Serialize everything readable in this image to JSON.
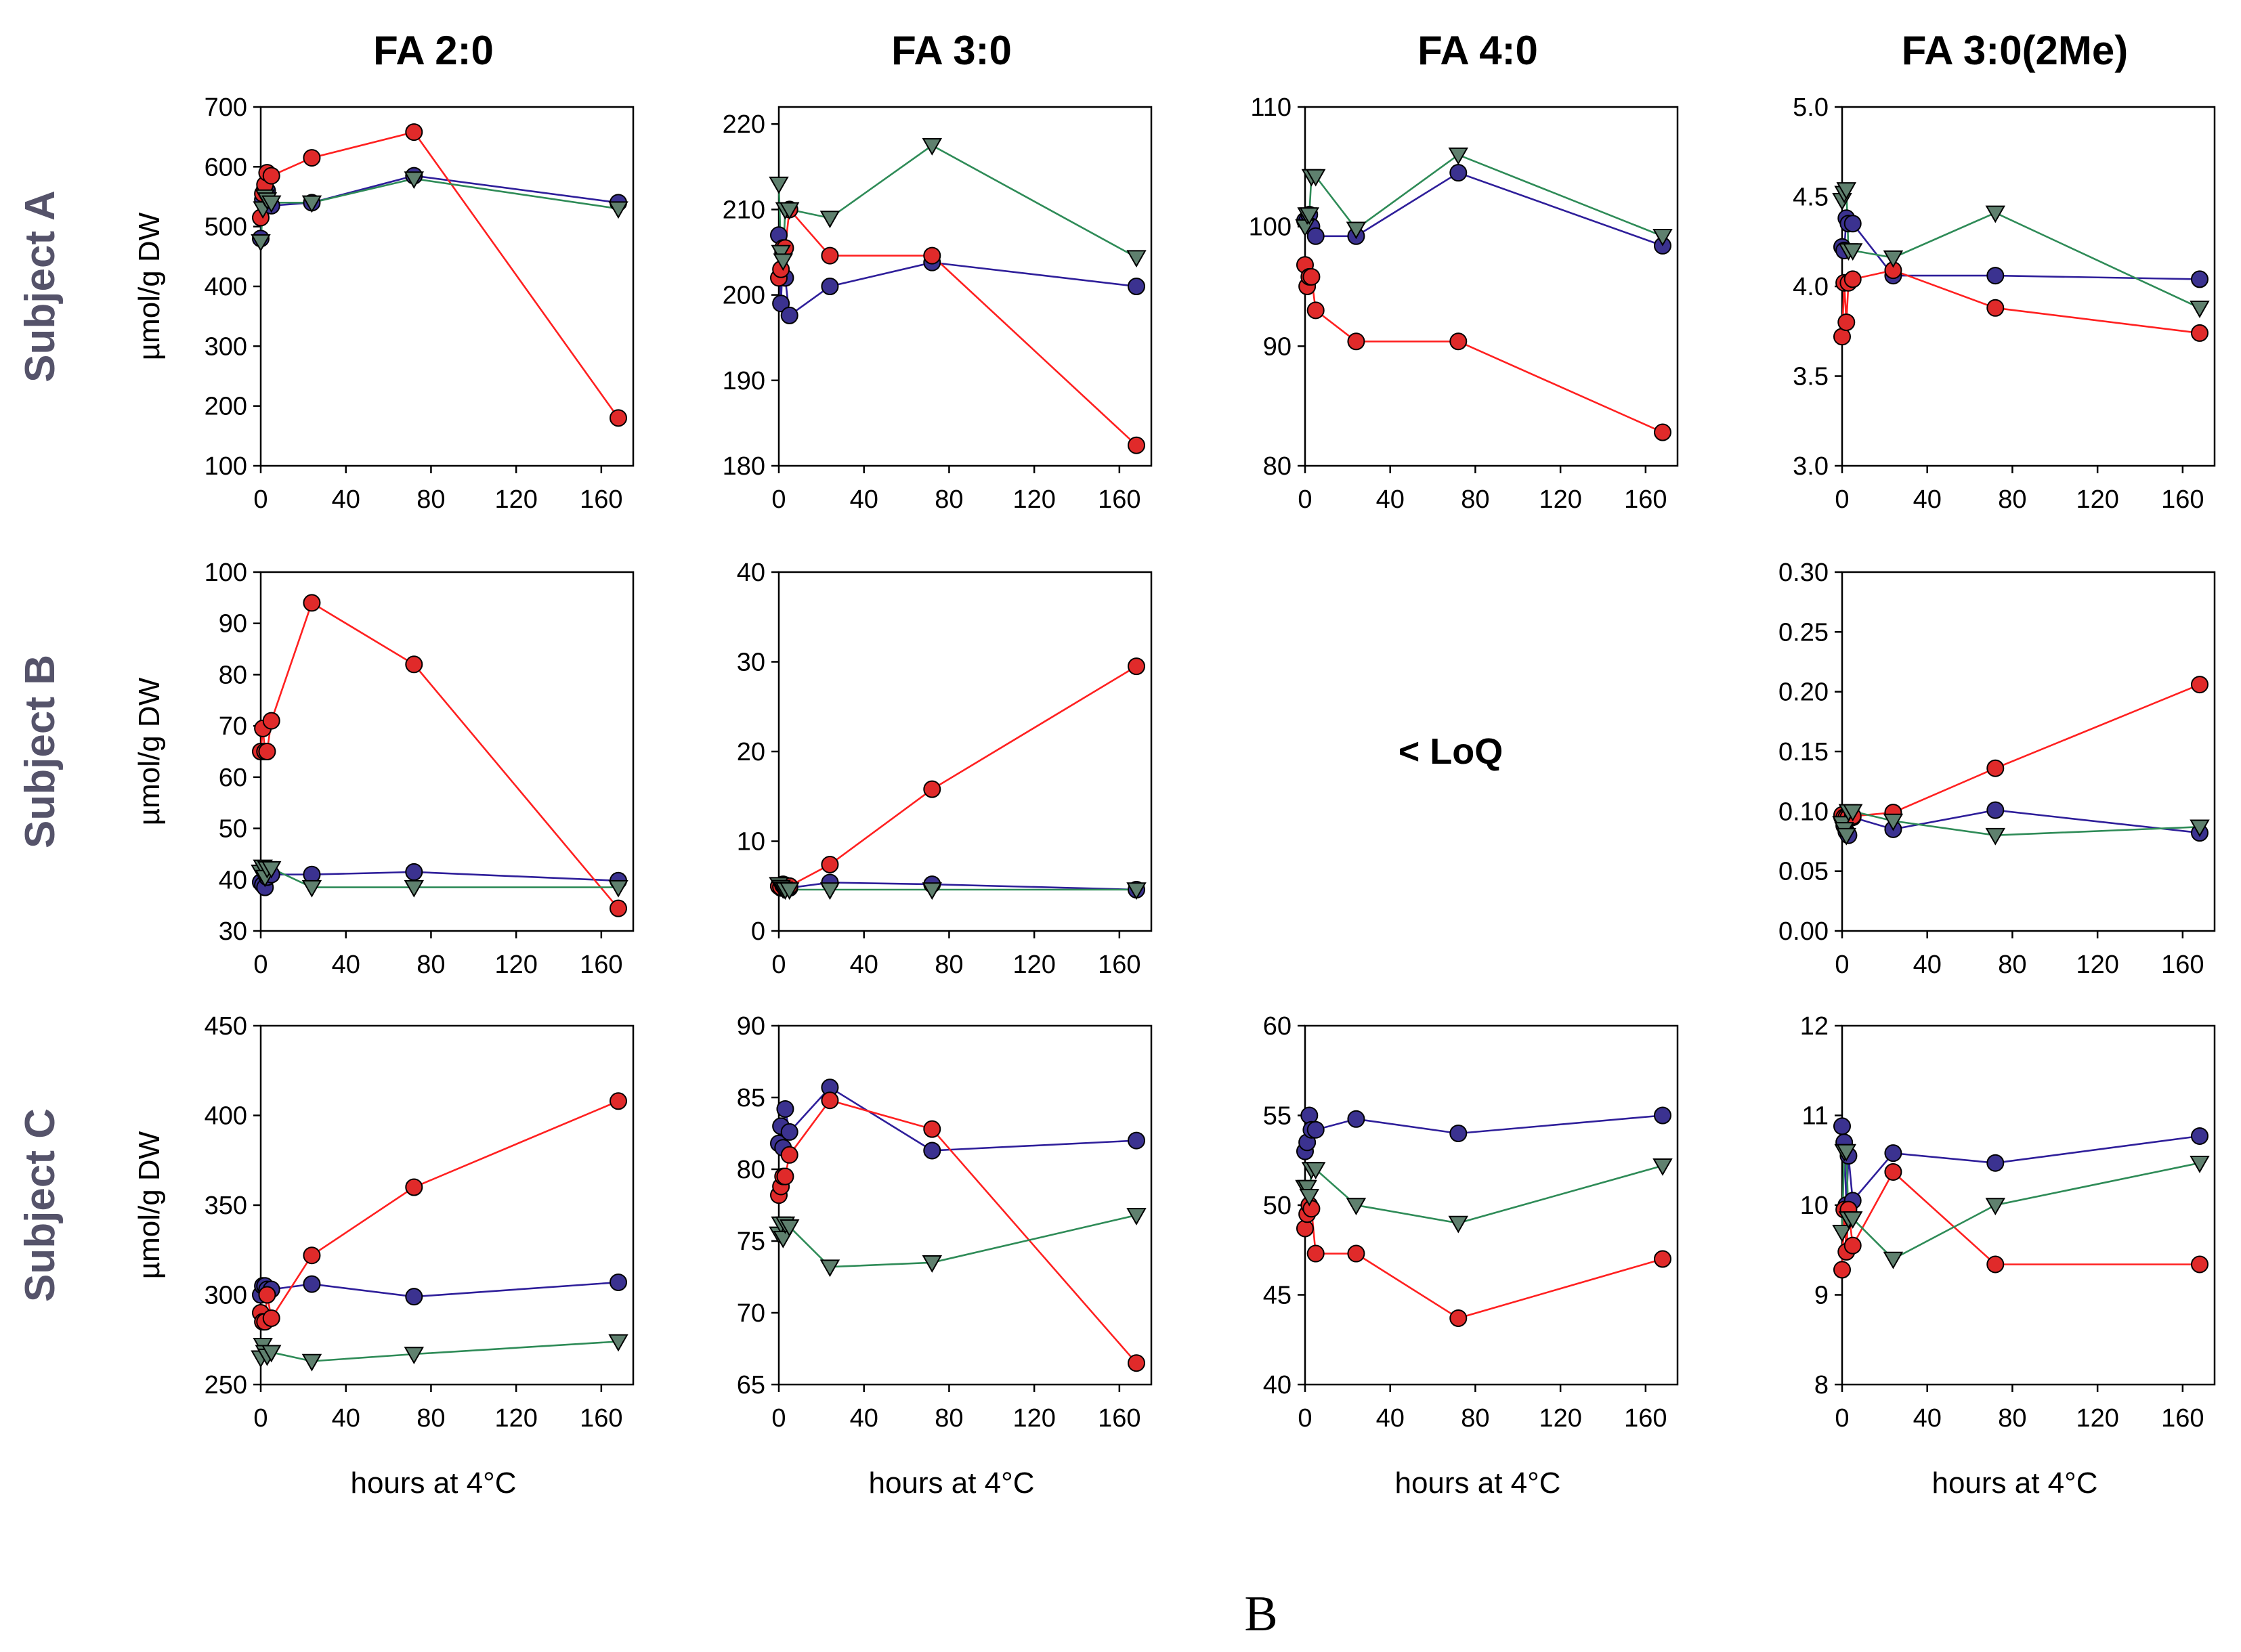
{
  "figure_label": "B",
  "chart_data": {
    "type": "line",
    "columns": [
      "FA 2:0",
      "FA 3:0",
      "FA 4:0",
      "FA 3:0(2Me)"
    ],
    "rows": [
      "Subject A",
      "Subject B",
      "Subject C"
    ],
    "ylabel": "µmol/g DW",
    "xlabel": "hours at 4°C",
    "xlim": [
      0,
      175
    ],
    "xticks": [
      0,
      40,
      80,
      120,
      160
    ],
    "series_styles": [
      {
        "color": "#2e1e9a",
        "fill": "#3b3290",
        "marker": "circle"
      },
      {
        "color": "#ff2020",
        "fill": "#e02a2a",
        "marker": "circle"
      },
      {
        "color": "#2e8b57",
        "fill": "#5f806e",
        "marker": "triangle-down"
      }
    ],
    "empty_panel_text": "< LoQ",
    "panels": [
      {
        "row": 0,
        "col": 0,
        "ylim": [
          100,
          700
        ],
        "yticks": [
          100,
          200,
          300,
          400,
          500,
          600,
          700
        ],
        "series": [
          {
            "x": [
              0,
              1,
              2,
              3,
              5,
              24,
              72,
              168
            ],
            "y": [
              480,
              545,
              565,
              560,
              535,
              540,
              585,
              540
            ]
          },
          {
            "x": [
              0,
              1,
              2,
              3,
              5,
              24,
              72,
              168
            ],
            "y": [
              515,
              555,
              570,
              590,
              585,
              615,
              658,
              180
            ]
          },
          {
            "x": [
              0,
              1,
              2,
              3,
              5,
              24,
              72,
              168
            ],
            "y": [
              475,
              530,
              550,
              545,
              540,
              540,
              580,
              530
            ]
          }
        ]
      },
      {
        "row": 0,
        "col": 1,
        "ylim": [
          180,
          222
        ],
        "yticks": [
          180,
          190,
          200,
          210,
          220
        ],
        "series": [
          {
            "x": [
              0,
              1,
              2,
              3,
              5,
              24,
              72,
              168
            ],
            "y": [
              207,
              199,
              205,
              202,
              197.6,
              201,
              203.8,
              201
            ]
          },
          {
            "x": [
              0,
              1,
              2,
              3,
              5,
              24,
              72,
              168
            ],
            "y": [
              202,
              203,
              205.5,
              205.5,
              210,
              204.6,
              204.6,
              182.4
            ]
          },
          {
            "x": [
              0,
              1,
              2,
              3,
              5,
              24,
              72,
              168
            ],
            "y": [
              213,
              205,
              204,
              210,
              210,
              209,
              217.5,
              204.4
            ]
          }
        ]
      },
      {
        "row": 0,
        "col": 2,
        "ylim": [
          80,
          110
        ],
        "yticks": [
          80,
          90,
          100,
          110
        ],
        "series": [
          {
            "x": [
              0,
              1,
              2,
              3,
              5,
              24,
              72,
              168
            ],
            "y": [
              100.5,
              100.5,
              101,
              100,
              99.2,
              99.2,
              104.5,
              98.4
            ]
          },
          {
            "x": [
              0,
              1,
              2,
              3,
              5,
              24,
              72,
              168
            ],
            "y": [
              96.8,
              95,
              95.8,
              95.8,
              93,
              90.4,
              90.4,
              82.8
            ]
          },
          {
            "x": [
              0,
              1,
              2,
              3,
              5,
              24,
              72,
              168
            ],
            "y": [
              100,
              101,
              101,
              104.2,
              104.2,
              99.8,
              106,
              99.2
            ]
          }
        ]
      },
      {
        "row": 0,
        "col": 3,
        "ylim": [
          3,
          5
        ],
        "yticks": [
          3.0,
          3.5,
          4.0,
          4.5,
          5.0
        ],
        "series": [
          {
            "x": [
              0,
              1,
              2,
              3,
              5,
              24,
              72,
              168
            ],
            "y": [
              4.22,
              4.2,
              4.38,
              4.35,
              4.35,
              4.06,
              4.06,
              4.04
            ]
          },
          {
            "x": [
              0,
              1,
              2,
              3,
              5,
              24,
              72,
              168
            ],
            "y": [
              3.72,
              4.02,
              3.8,
              4.02,
              4.04,
              4.09,
              3.88,
              3.74
            ]
          },
          {
            "x": [
              0,
              1,
              2,
              3,
              5,
              24,
              72,
              168
            ],
            "y": [
              4.48,
              4.52,
              4.54,
              4.2,
              4.2,
              4.16,
              4.41,
              3.88
            ]
          }
        ]
      },
      {
        "row": 1,
        "col": 0,
        "ylim": [
          30,
          100
        ],
        "yticks": [
          30,
          40,
          50,
          60,
          70,
          80,
          90,
          100
        ],
        "series": [
          {
            "x": [
              0,
              1,
              2,
              3,
              5,
              24,
              72,
              168
            ],
            "y": [
              39.5,
              39,
              38.5,
              40.5,
              41,
              41,
              41.5,
              39.8
            ]
          },
          {
            "x": [
              0,
              1,
              2,
              3,
              5,
              24,
              72,
              168
            ],
            "y": [
              65,
              69.5,
              65,
              65,
              71,
              94,
              82,
              34.4
            ]
          },
          {
            "x": [
              0,
              1,
              2,
              3,
              5,
              24,
              72,
              168
            ],
            "y": [
              41.5,
              42.5,
              40.5,
              42.2,
              42.2,
              38.5,
              38.5,
              38.5
            ]
          }
        ]
      },
      {
        "row": 1,
        "col": 1,
        "ylim": [
          0,
          40
        ],
        "yticks": [
          0,
          10,
          20,
          30,
          40
        ],
        "series": [
          {
            "x": [
              0,
              1,
              2,
              3,
              5,
              24,
              72,
              168
            ],
            "y": [
              5,
              4.8,
              5.2,
              5,
              4.8,
              5.4,
              5.2,
              4.6
            ]
          },
          {
            "x": [
              0,
              1,
              2,
              3,
              5,
              24,
              72,
              168
            ],
            "y": [
              5,
              4.9,
              5.1,
              5.1,
              5,
              7.4,
              15.8,
              29.5
            ]
          },
          {
            "x": [
              0,
              1,
              2,
              3,
              5,
              24,
              72,
              168
            ],
            "y": [
              5.2,
              4.9,
              4.7,
              4.6,
              4.6,
              4.6,
              4.6,
              4.6
            ]
          }
        ]
      },
      {
        "row": 1,
        "col": 2,
        "empty": true
      },
      {
        "row": 1,
        "col": 3,
        "ylim": [
          0,
          0.3
        ],
        "yticks": [
          0.0,
          0.05,
          0.1,
          0.15,
          0.2,
          0.25,
          0.3
        ],
        "series": [
          {
            "x": [
              0,
              1,
              2,
              3,
              5,
              24,
              72,
              168
            ],
            "y": [
              0.095,
              0.088,
              0.083,
              0.08,
              0.095,
              0.085,
              0.101,
              0.082
            ]
          },
          {
            "x": [
              0,
              1,
              2,
              3,
              5,
              24,
              72,
              168
            ],
            "y": [
              0.097,
              0.095,
              0.095,
              0.095,
              0.096,
              0.099,
              0.136,
              0.206
            ]
          },
          {
            "x": [
              0,
              1,
              2,
              3,
              5,
              24,
              72,
              168
            ],
            "y": [
              0.09,
              0.085,
              0.08,
              0.1,
              0.1,
              0.092,
              0.08,
              0.087
            ]
          }
        ]
      },
      {
        "row": 2,
        "col": 0,
        "ylim": [
          250,
          450
        ],
        "yticks": [
          250,
          300,
          350,
          400,
          450
        ],
        "series": [
          {
            "x": [
              0,
              1,
              2,
              3,
              5,
              24,
              72,
              168
            ],
            "y": [
              300,
              305,
              305,
              303,
              303,
              306,
              299,
              307
            ]
          },
          {
            "x": [
              0,
              1,
              2,
              3,
              5,
              24,
              72,
              168
            ],
            "y": [
              290,
              285,
              285,
              300,
              287,
              322,
              360,
              408
            ]
          },
          {
            "x": [
              0,
              1,
              2,
              3,
              5,
              24,
              72,
              168
            ],
            "y": [
              265,
              272,
              268,
              266,
              268,
              263,
              267,
              274
            ]
          }
        ]
      },
      {
        "row": 2,
        "col": 1,
        "ylim": [
          65,
          90
        ],
        "yticks": [
          65,
          70,
          75,
          80,
          85,
          90
        ],
        "series": [
          {
            "x": [
              0,
              1,
              2,
              3,
              5,
              24,
              72,
              168
            ],
            "y": [
              81.8,
              83,
              81.5,
              84.2,
              82.6,
              85.7,
              81.3,
              82
            ]
          },
          {
            "x": [
              0,
              1,
              2,
              3,
              5,
              24,
              72,
              168
            ],
            "y": [
              78.2,
              78.8,
              79.5,
              79.5,
              81,
              84.8,
              82.8,
              66.5
            ]
          },
          {
            "x": [
              0,
              1,
              2,
              3,
              5,
              24,
              72,
              168
            ],
            "y": [
              75.5,
              76.2,
              75.2,
              76.2,
              76,
              73.2,
              73.5,
              76.8
            ]
          }
        ]
      },
      {
        "row": 2,
        "col": 2,
        "ylim": [
          40,
          60
        ],
        "yticks": [
          40,
          45,
          50,
          55,
          60
        ],
        "series": [
          {
            "x": [
              0,
              1,
              2,
              3,
              5,
              24,
              72,
              168
            ],
            "y": [
              53,
              53.5,
              55,
              54.2,
              54.2,
              54.8,
              54,
              55
            ]
          },
          {
            "x": [
              0,
              1,
              2,
              3,
              5,
              24,
              72,
              168
            ],
            "y": [
              48.7,
              49.5,
              50,
              49.8,
              47.3,
              47.3,
              43.7,
              47
            ]
          },
          {
            "x": [
              0,
              1,
              2,
              3,
              5,
              24,
              72,
              168
            ],
            "y": [
              51,
              51,
              50.5,
              52,
              52,
              50,
              49,
              52.2
            ]
          }
        ]
      },
      {
        "row": 2,
        "col": 3,
        "ylim": [
          8,
          12
        ],
        "yticks": [
          8,
          9,
          10,
          11,
          12
        ],
        "series": [
          {
            "x": [
              0,
              1,
              2,
              3,
              5,
              24,
              72,
              168
            ],
            "y": [
              10.88,
              10.7,
              10,
              10.55,
              10.05,
              10.58,
              10.47,
              10.77
            ]
          },
          {
            "x": [
              0,
              1,
              2,
              3,
              5,
              24,
              72,
              168
            ],
            "y": [
              9.28,
              9.95,
              9.48,
              9.95,
              9.55,
              10.37,
              9.34,
              9.34
            ]
          },
          {
            "x": [
              0,
              1,
              2,
              3,
              5,
              24,
              72,
              168
            ],
            "y": [
              9.7,
              10.6,
              10.6,
              9.85,
              9.85,
              9.4,
              10,
              10.47
            ]
          }
        ]
      }
    ]
  }
}
